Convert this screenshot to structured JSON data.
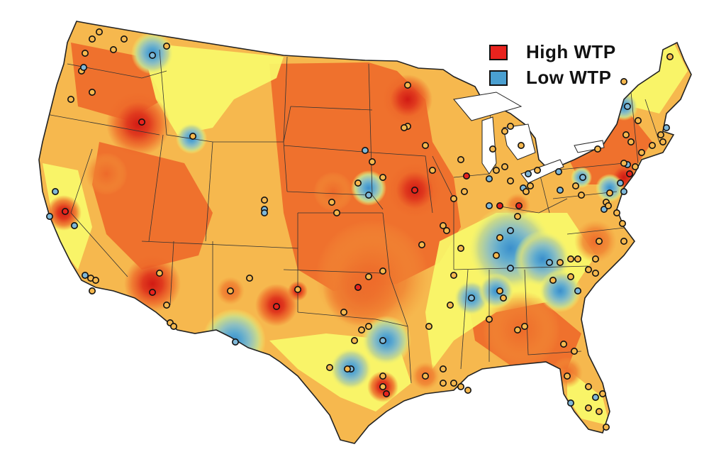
{
  "legend": {
    "items": [
      {
        "label": "High WTP",
        "color": "#e8231e"
      },
      {
        "label": "Low WTP",
        "color": "#4a9fd0"
      }
    ]
  },
  "palette": {
    "very_high": "#e03a1e",
    "high": "#ee6a2a",
    "mid_high": "#f39a3b",
    "mid": "#f6b84e",
    "low_mid": "#f9dc5c",
    "low": "#f9f86a",
    "lower": "#c9d98a",
    "lowest": "#8fc0c0",
    "very_low": "#4a9fd0",
    "border": "#222222",
    "ocean": "#ffffff"
  }
}
